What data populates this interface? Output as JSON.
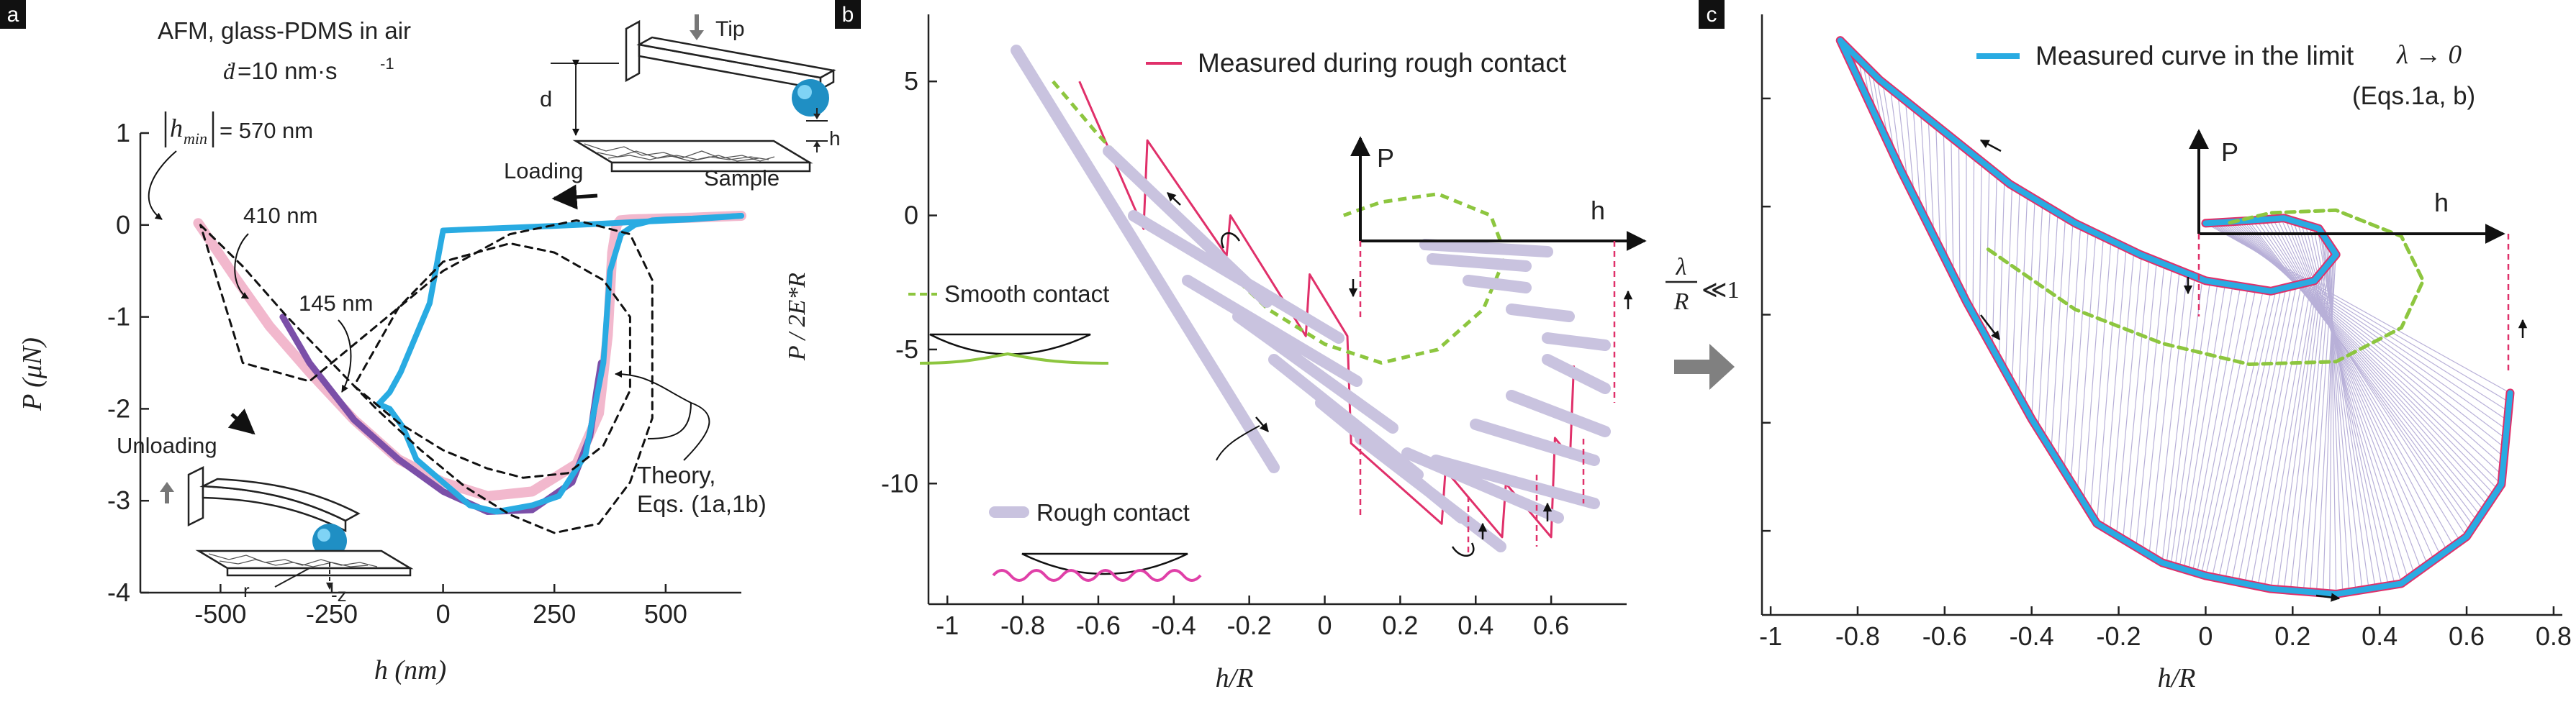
{
  "panel_letters": [
    "a",
    "b",
    "c"
  ],
  "panel_a": {
    "conditions": "AFM, glass-PDMS in air",
    "rate_symbol": "ḋ",
    "rate_value": "=10 nm·s",
    "rate_exp": "-1",
    "hmin_symbol": "h",
    "hmin_sub": "min",
    "hmin_value": "= 570 nm",
    "label_410": "410 nm",
    "label_145": "145 nm",
    "tip": "Tip",
    "d": "d",
    "h_small": "h",
    "loading": "Loading",
    "sample": "Sample",
    "unloading": "Unloading",
    "r": "r",
    "z": "-z",
    "theory": "Theory,",
    "equations": "Eqs. (1a,1b)"
  },
  "panel_b": {
    "legend_measured": "Measured during rough contact",
    "smooth_contact": "Smooth contact",
    "rough_contact": "Rough contact",
    "inset_P": "P",
    "inset_h": "h"
  },
  "panel_c": {
    "legend_line1": "Measured curve in the limit",
    "legend_limit": "λ → 0",
    "legend_line2": "(Eqs.1a, b)",
    "inset_P": "P",
    "inset_h": "h"
  },
  "transition": {
    "numerator": "λ",
    "denominator": "R",
    "relation": "≪1"
  },
  "colors": {
    "pink": "#f2b8cd",
    "purple": "#7b4fa8",
    "blue": "#29abe2",
    "red": "#e0306a",
    "green": "#8dc63f",
    "lavender": "#c9c3df",
    "magenta": "#e040a8"
  },
  "chart_data": [
    {
      "type": "line",
      "panel": "a",
      "xlabel": "h (nm)",
      "ylabel": "P (μN)",
      "xlim": [
        -680,
        670
      ],
      "ylim": [
        -4,
        1
      ],
      "xticks": [
        -500,
        -250,
        0,
        250,
        500
      ],
      "xtick_labels": [
        "-500",
        "-250",
        "0",
        "250",
        "500"
      ],
      "yticks": [
        1,
        0,
        -1,
        -2,
        -3,
        -4
      ],
      "ytick_labels": [
        "1",
        "0",
        "-1",
        "-2",
        "-3",
        "-4"
      ],
      "series": [
        {
          "color": "pink",
          "x": [
            -550,
            -470,
            -390,
            -300,
            -200,
            -100,
            0,
            100,
            200,
            300,
            350,
            370,
            380,
            390,
            398,
            420,
            560,
            670
          ],
          "y": [
            0.02,
            -0.55,
            -1.1,
            -1.6,
            -2.12,
            -2.55,
            -2.8,
            -2.95,
            -2.9,
            -2.6,
            -2.05,
            -1.2,
            -0.3,
            0.0,
            0.05,
            0.06,
            0.08,
            0.1
          ]
        },
        {
          "color": "purple",
          "x": [
            -360,
            -300,
            -200,
            -100,
            0,
            100,
            200,
            290,
            330,
            345,
            355
          ],
          "y": [
            -1.0,
            -1.5,
            -2.12,
            -2.55,
            -2.9,
            -3.12,
            -3.1,
            -2.8,
            -2.3,
            -1.8,
            -1.5
          ]
        },
        {
          "color": "blue",
          "x": [
            -145,
            -120,
            -90,
            -60,
            0,
            60,
            120,
            200,
            260,
            320,
            360,
            375,
            400,
            430,
            455,
            470,
            500,
            560,
            670
          ],
          "y": [
            -1.95,
            -2.0,
            -2.2,
            -2.55,
            -2.8,
            -3.05,
            -3.12,
            -3.05,
            -2.95,
            -2.5,
            -1.5,
            -0.5,
            -0.1,
            0.0,
            0.03,
            0.05,
            0.06,
            0.07,
            0.1
          ]
        },
        {
          "color": "blue",
          "x": [
            -145,
            -120,
            -95,
            -30,
            0,
            100,
            200,
            300,
            420,
            555,
            670
          ],
          "y": [
            -1.95,
            -1.82,
            -1.6,
            -0.85,
            -0.06,
            -0.04,
            -0.02,
            0.0,
            0.03,
            0.06,
            0.1
          ]
        },
        {
          "color": "black-dashed",
          "x": [
            -545,
            -450,
            -350,
            -250,
            -150,
            -50,
            50,
            150,
            250,
            350,
            420,
            470,
            470,
            420,
            300,
            150,
            0,
            -150,
            -300,
            -450,
            -545
          ],
          "y": [
            0.0,
            -0.45,
            -1.0,
            -1.5,
            -2.0,
            -2.45,
            -2.85,
            -3.15,
            -3.35,
            -3.25,
            -2.8,
            -2.1,
            -0.6,
            -0.1,
            0.05,
            -0.1,
            -0.5,
            -1.1,
            -1.7,
            -1.5,
            0.0
          ]
        },
        {
          "color": "black-dashed",
          "x": [
            -200,
            -100,
            0,
            100,
            180,
            280,
            360,
            420,
            420,
            360,
            250,
            150,
            0,
            -100,
            -200
          ],
          "y": [
            -1.75,
            -2.15,
            -2.45,
            -2.65,
            -2.75,
            -2.7,
            -2.4,
            -1.8,
            -1.0,
            -0.6,
            -0.3,
            -0.2,
            -0.4,
            -0.9,
            -1.75
          ]
        }
      ]
    },
    {
      "type": "line",
      "panel": "b",
      "xlabel": "h/R",
      "ylabel": "P / 2E*R",
      "xlim": [
        -1.05,
        0.8
      ],
      "ylim": [
        -14.5,
        7.5
      ],
      "xticks": [
        -1,
        -0.8,
        -0.6,
        -0.4,
        -0.2,
        0,
        0.2,
        0.4,
        0.6
      ],
      "xtick_labels": [
        "-1",
        "-0.8",
        "-0.6",
        "-0.4",
        "-0.2",
        "0",
        "0.2",
        "0.4",
        "0.6"
      ],
      "yticks": [
        5,
        0,
        -5,
        -10
      ],
      "ytick_labels": [
        "5",
        "0",
        "-5",
        "-10"
      ],
      "series": [
        {
          "color": "lavender",
          "x": [
            -0.75,
            -0.68,
            -0.58,
            -0.48,
            -0.38,
            -0.28,
            -0.18
          ],
          "y": [
            7.0,
            5.6,
            3.0,
            -0.3,
            -3.6,
            -6.9,
            -10.0
          ]
        },
        {
          "color": "red",
          "x": [
            -0.65,
            -0.48,
            -0.47,
            -0.26,
            -0.25,
            -0.05,
            -0.04,
            0.06,
            0.07,
            0.31,
            0.32,
            0.47,
            0.48,
            0.6,
            0.61,
            0.65,
            0.66
          ],
          "y": [
            5.0,
            -0.5,
            2.8,
            -1.5,
            0.0,
            -4.5,
            -2.2,
            -4.5,
            -8.5,
            -11.5,
            -9.5,
            -12.0,
            -10.0,
            -12.0,
            -8.3,
            -9.0,
            -5.6
          ]
        },
        {
          "color": "green-dashed",
          "x": [
            -0.72,
            -0.6,
            -0.45,
            -0.3,
            -0.15,
            0.0,
            0.15,
            0.3,
            0.42,
            0.48,
            0.44,
            0.3,
            0.15,
            0.05
          ],
          "y": [
            5.0,
            3.0,
            0.8,
            -1.5,
            -3.5,
            -4.8,
            -5.5,
            -5.0,
            -3.5,
            -1.5,
            0.0,
            0.8,
            0.5,
            0.0
          ]
        }
      ]
    },
    {
      "type": "line",
      "panel": "c",
      "xlabel": "h/R",
      "ylabel": "",
      "xlim": [
        -1.02,
        0.82
      ],
      "ylim": [
        -15,
        8
      ],
      "xticks": [
        -1,
        -0.8,
        -0.6,
        -0.4,
        -0.2,
        0,
        0.2,
        0.4,
        0.6,
        0.8
      ],
      "xtick_labels": [
        "-1",
        "-0.8",
        "-0.6",
        "-0.4",
        "-0.2",
        "0",
        "0.2",
        "0.4",
        "0.6",
        "0.8"
      ],
      "series": [
        {
          "color": "blue",
          "x": [
            -0.84,
            -0.75,
            -0.6,
            -0.45,
            -0.3,
            -0.15,
            0.0,
            0.15,
            0.25,
            0.3,
            0.26,
            0.18,
            0.1,
            0.05,
            0.0
          ],
          "y": [
            7.0,
            5.5,
            3.5,
            1.5,
            0.0,
            -1.2,
            -2.2,
            -2.6,
            -2.2,
            -1.2,
            -0.2,
            0.2,
            0.1,
            0.05,
            0.0
          ]
        },
        {
          "color": "blue",
          "x": [
            -0.84,
            -0.7,
            -0.55,
            -0.4,
            -0.25,
            -0.1,
            0.0,
            0.15,
            0.3,
            0.45,
            0.6,
            0.68,
            0.7
          ],
          "y": [
            7.0,
            2.0,
            -3.0,
            -7.5,
            -11.5,
            -13.0,
            -13.5,
            -14.0,
            -14.2,
            -13.8,
            -12.0,
            -10.0,
            -6.5
          ]
        },
        {
          "color": "green-dashed",
          "x": [
            -0.5,
            -0.3,
            -0.1,
            0.1,
            0.3,
            0.45,
            0.5,
            0.45,
            0.3,
            0.15,
            0.05
          ],
          "y": [
            -1.0,
            -3.3,
            -4.6,
            -5.4,
            -5.3,
            -4.0,
            -2.2,
            -0.5,
            0.5,
            0.4,
            0.0
          ]
        }
      ]
    }
  ]
}
